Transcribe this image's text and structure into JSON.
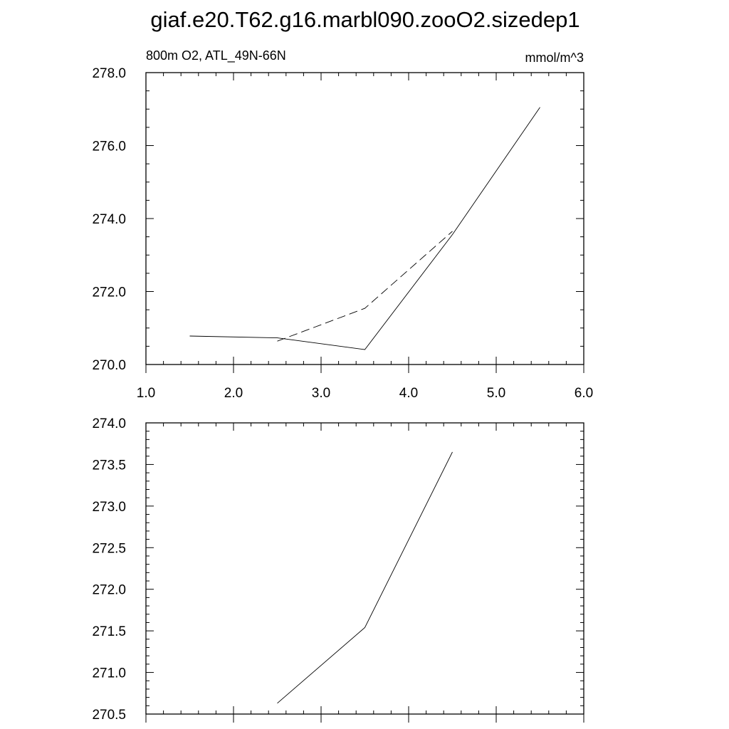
{
  "chart_data": [
    {
      "type": "line",
      "title": "giaf.e20.T62.g16.marbl090.zooO2.sizedep1",
      "left_string": "800m O2, ATL_49N-66N",
      "right_string": "mmol/m^3",
      "xlabel": "",
      "ylabel": "",
      "xlim": [
        1.0,
        6.0
      ],
      "ylim": [
        270.0,
        278.0
      ],
      "x_ticks": [
        "1.0",
        "2.0",
        "3.0",
        "4.0",
        "5.0",
        "6.0"
      ],
      "y_ticks": [
        "270.0",
        "272.0",
        "274.0",
        "276.0",
        "278.0"
      ],
      "grid": false,
      "series": [
        {
          "style": "solid",
          "x": [
            1.5,
            2.5,
            3.5,
            4.5,
            5.5
          ],
          "y": [
            270.78,
            270.73,
            270.41,
            273.56,
            277.05
          ]
        },
        {
          "style": "dashed",
          "x": [
            2.5,
            3.5,
            4.5
          ],
          "y": [
            270.64,
            271.54,
            273.65
          ]
        }
      ]
    },
    {
      "type": "line",
      "title": "",
      "xlabel": "",
      "ylabel": "",
      "xlim": [
        1.0,
        6.0
      ],
      "ylim": [
        270.5,
        274.0
      ],
      "y_ticks": [
        "270.5",
        "271.0",
        "271.5",
        "272.0",
        "272.5",
        "273.0",
        "273.5",
        "274.0"
      ],
      "grid": false,
      "series": [
        {
          "style": "solid",
          "x": [
            2.5,
            3.5,
            4.5
          ],
          "y": [
            270.63,
            271.54,
            273.65
          ]
        }
      ]
    }
  ]
}
